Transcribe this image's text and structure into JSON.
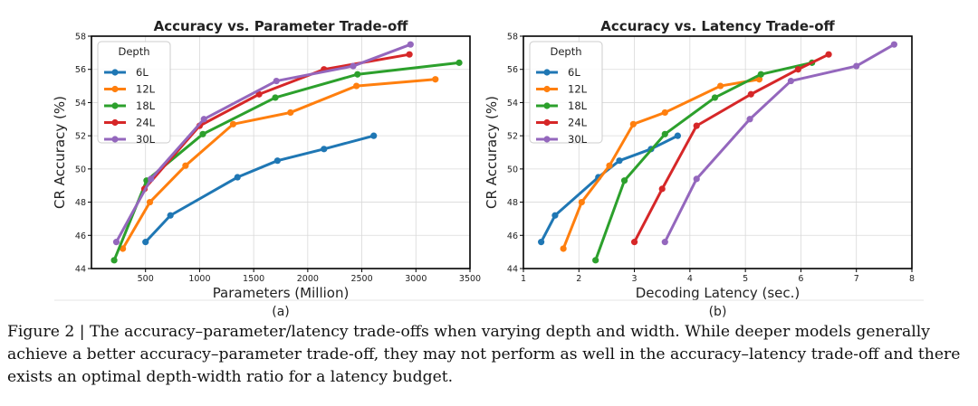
{
  "caption": "Figure 2 | The accuracy–parameter/latency trade-offs when varying depth and width. While deeper models generally achieve a better accuracy–parameter trade-off, they may not perform as well in the accuracy–latency trade-off and there exists an optimal depth-width ratio for a latency budget.",
  "colors": {
    "6L": "#1f77b4",
    "12L": "#ff7f0e",
    "18L": "#2ca02c",
    "24L": "#d62728",
    "30L": "#9467bd"
  },
  "chart_data": [
    {
      "type": "line",
      "panel_label": "(a)",
      "title": "Accuracy vs. Parameter Trade-off",
      "xlabel": "Parameters (Million)",
      "ylabel": "CR Accuracy (%)",
      "xlim": [
        0,
        3500
      ],
      "ylim": [
        44,
        58
      ],
      "xticks": [
        "500",
        "1000",
        "1500",
        "2000",
        "2500",
        "3000",
        "3500"
      ],
      "xtick_values": [
        500,
        1000,
        1500,
        2000,
        2500,
        3000,
        3500
      ],
      "yticks": [
        "44",
        "46",
        "48",
        "50",
        "52",
        "54",
        "56",
        "58"
      ],
      "ytick_values": [
        44,
        46,
        48,
        50,
        52,
        54,
        56,
        58
      ],
      "grid": true,
      "legend_title": "Depth",
      "legend_position": "top-left",
      "series": [
        {
          "name": "6L",
          "points": [
            [
              500,
              45.6
            ],
            [
              730,
              47.2
            ],
            [
              1350,
              49.5
            ],
            [
              1720,
              50.5
            ],
            [
              2150,
              51.2
            ],
            [
              2610,
              52.0
            ]
          ]
        },
        {
          "name": "12L",
          "points": [
            [
              290,
              45.2
            ],
            [
              540,
              48.0
            ],
            [
              870,
              50.2
            ],
            [
              1310,
              52.7
            ],
            [
              1840,
              53.4
            ],
            [
              2450,
              55.0
            ],
            [
              3180,
              55.4
            ]
          ]
        },
        {
          "name": "18L",
          "points": [
            [
              210,
              44.5
            ],
            [
              510,
              49.3
            ],
            [
              1030,
              52.1
            ],
            [
              1700,
              54.3
            ],
            [
              2460,
              55.7
            ],
            [
              3400,
              56.4
            ]
          ]
        },
        {
          "name": "24L",
          "points": [
            [
              490,
              48.8
            ],
            [
              1000,
              52.6
            ],
            [
              1550,
              54.5
            ],
            [
              2150,
              56.0
            ],
            [
              2940,
              56.9
            ]
          ]
        },
        {
          "name": "30L",
          "points": [
            [
              230,
              45.6
            ],
            [
              550,
              49.4
            ],
            [
              1040,
              53.0
            ],
            [
              1710,
              55.3
            ],
            [
              2420,
              56.2
            ],
            [
              2950,
              57.5
            ]
          ]
        }
      ]
    },
    {
      "type": "line",
      "panel_label": "(b)",
      "title": "Accuracy vs. Latency Trade-off",
      "xlabel": "Decoding Latency (sec.)",
      "ylabel": "CR Accuracy (%)",
      "xlim": [
        1,
        8
      ],
      "ylim": [
        44,
        58
      ],
      "xticks": [
        "1",
        "2",
        "3",
        "4",
        "5",
        "6",
        "7",
        "8"
      ],
      "xtick_values": [
        1,
        2,
        3,
        4,
        5,
        6,
        7,
        8
      ],
      "yticks": [
        "44",
        "46",
        "48",
        "50",
        "52",
        "54",
        "56",
        "58"
      ],
      "ytick_values": [
        44,
        46,
        48,
        50,
        52,
        54,
        56,
        58
      ],
      "grid": true,
      "legend_title": "Depth",
      "legend_position": "top-left",
      "series": [
        {
          "name": "6L",
          "points": [
            [
              1.32,
              45.6
            ],
            [
              1.57,
              47.2
            ],
            [
              2.35,
              49.5
            ],
            [
              2.73,
              50.5
            ],
            [
              3.3,
              51.2
            ],
            [
              3.78,
              52.0
            ]
          ]
        },
        {
          "name": "12L",
          "points": [
            [
              1.72,
              45.2
            ],
            [
              2.05,
              48.0
            ],
            [
              2.55,
              50.2
            ],
            [
              2.98,
              52.7
            ],
            [
              3.55,
              53.4
            ],
            [
              4.55,
              55.0
            ],
            [
              5.25,
              55.4
            ]
          ]
        },
        {
          "name": "18L",
          "points": [
            [
              2.3,
              44.5
            ],
            [
              2.82,
              49.3
            ],
            [
              3.55,
              52.1
            ],
            [
              4.45,
              54.3
            ],
            [
              5.28,
              55.7
            ],
            [
              6.2,
              56.4
            ]
          ]
        },
        {
          "name": "24L",
          "points": [
            [
              3.0,
              45.6
            ],
            [
              3.5,
              48.8
            ],
            [
              4.12,
              52.6
            ],
            [
              5.1,
              54.5
            ],
            [
              5.95,
              56.0
            ],
            [
              6.5,
              56.9
            ]
          ]
        },
        {
          "name": "30L",
          "points": [
            [
              3.55,
              45.6
            ],
            [
              4.12,
              49.4
            ],
            [
              5.08,
              53.0
            ],
            [
              5.82,
              55.3
            ],
            [
              7.0,
              56.2
            ],
            [
              7.68,
              57.5
            ]
          ]
        }
      ]
    }
  ]
}
